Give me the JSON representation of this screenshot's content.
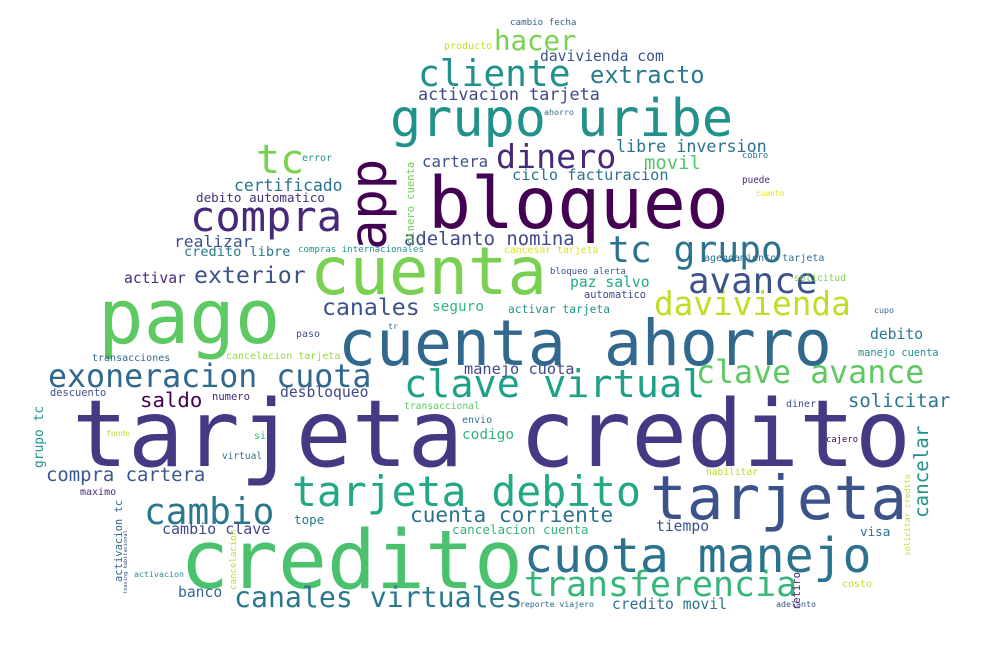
{
  "words": [
    {
      "text": "tarjeta credito",
      "color": "#443983"
    },
    {
      "text": "credito",
      "color": "#4ac16d"
    },
    {
      "text": "pago",
      "color": "#5ec962"
    },
    {
      "text": "bloqueo",
      "color": "#440154"
    },
    {
      "text": "cuenta ahorro",
      "color": "#31688e"
    },
    {
      "text": "cuenta",
      "color": "#7ad151"
    },
    {
      "text": "tarjeta",
      "color": "#3b528b"
    },
    {
      "text": "grupo uribe",
      "color": "#21918c"
    },
    {
      "text": "app",
      "color": "#440154"
    },
    {
      "text": "cuota manejo",
      "color": "#2c728e"
    },
    {
      "text": "tarjeta debito",
      "color": "#22a884"
    },
    {
      "text": "clave virtual",
      "color": "#1fa187"
    },
    {
      "text": "compra",
      "color": "#482878"
    },
    {
      "text": "tc grupo",
      "color": "#2c728e"
    },
    {
      "text": "cliente",
      "color": "#21918c"
    },
    {
      "text": "canales virtuales",
      "color": "#2a788e"
    },
    {
      "text": "transferencia",
      "color": "#35b779"
    },
    {
      "text": "exoneracion cuota",
      "color": "#31688e"
    },
    {
      "text": "davivienda",
      "color": "#bddf26"
    },
    {
      "text": "cambio",
      "color": "#2a788e"
    },
    {
      "text": "clave avance",
      "color": "#5ec962"
    },
    {
      "text": "avance",
      "color": "#3b528b"
    },
    {
      "text": "tc",
      "color": "#7ad151"
    },
    {
      "text": "dinero",
      "color": "#482878"
    },
    {
      "text": "hacer",
      "color": "#7ad151"
    },
    {
      "text": "extracto",
      "color": "#2a788e"
    },
    {
      "text": "exterior",
      "color": "#3b528b"
    },
    {
      "text": "canales",
      "color": "#3b528b"
    },
    {
      "text": "compra cartera",
      "color": "#38598c"
    },
    {
      "text": "cuenta corriente",
      "color": "#2c728e"
    },
    {
      "text": "cancelar",
      "color": "#21918c"
    },
    {
      "text": "solicitar",
      "color": "#2a788e"
    },
    {
      "text": "adelanto nomina",
      "color": "#3e4989"
    },
    {
      "text": "activacion tarjeta",
      "color": "#3e4989"
    },
    {
      "text": "davivienda com",
      "color": "#39568c"
    },
    {
      "text": "manejo cuota",
      "color": "#3e4989"
    },
    {
      "text": "saldo",
      "color": "#440154"
    },
    {
      "text": "cambio clave",
      "color": "#3e4989"
    },
    {
      "text": "movil",
      "color": "#52c569"
    },
    {
      "text": "libre inversion",
      "color": "#2c728e"
    },
    {
      "text": "ciclo facturacion",
      "color": "#2c728e"
    },
    {
      "text": "cartera",
      "color": "#3b528b"
    },
    {
      "text": "certificado",
      "color": "#2c728e"
    },
    {
      "text": "debito automatico",
      "color": "#472d7b"
    },
    {
      "text": "realizar",
      "color": "#3b528b"
    },
    {
      "text": "credito libre",
      "color": "#2a788e"
    },
    {
      "text": "activar",
      "color": "#482878"
    },
    {
      "text": "paz salvo",
      "color": "#22a884"
    },
    {
      "text": "seguro",
      "color": "#2fb47c"
    },
    {
      "text": "activar tarjeta",
      "color": "#21918c"
    },
    {
      "text": "desbloqueo",
      "color": "#3e4989"
    },
    {
      "text": "codigo",
      "color": "#2fb47c"
    },
    {
      "text": "tope",
      "color": "#2a788e"
    },
    {
      "text": "cancelacion cuenta",
      "color": "#35b779"
    },
    {
      "text": "tiempo",
      "color": "#3b528b"
    },
    {
      "text": "visa",
      "color": "#2c728e"
    },
    {
      "text": "banco",
      "color": "#31688e"
    },
    {
      "text": "credito movil",
      "color": "#2c728e"
    },
    {
      "text": "debito",
      "color": "#2a788e"
    },
    {
      "text": "grupo tc",
      "color": "#21918c"
    },
    {
      "text": "transacciones",
      "color": "#31688e"
    },
    {
      "text": "cancelacion tarjeta",
      "color": "#95d840"
    },
    {
      "text": "descuento",
      "color": "#3b528b"
    },
    {
      "text": "numero",
      "color": "#482878"
    },
    {
      "text": "transaccional",
      "color": "#5ec962"
    },
    {
      "text": "envio",
      "color": "#2c728e"
    },
    {
      "text": "si",
      "color": "#35b779"
    },
    {
      "text": "fondo",
      "color": "#bddf26"
    },
    {
      "text": "virtual",
      "color": "#2c728e"
    },
    {
      "text": "maximo",
      "color": "#482878"
    },
    {
      "text": "activacion tc",
      "color": "#31688e"
    },
    {
      "text": "leasing habitacional",
      "color": "#3b528b"
    },
    {
      "text": "activacion",
      "color": "#21918c"
    },
    {
      "text": "cancelacion",
      "color": "#bddf26"
    },
    {
      "text": "dinero cuenta",
      "color": "#6ece58"
    },
    {
      "text": "reporte viajero",
      "color": "#31688e"
    },
    {
      "text": "retiro",
      "color": "#481f70"
    },
    {
      "text": "adelanto",
      "color": "#3b528b"
    },
    {
      "text": "costo",
      "color": "#bddf26"
    },
    {
      "text": "solicitar credito",
      "color": "#bddf26"
    },
    {
      "text": "cajero",
      "color": "#440154"
    },
    {
      "text": "habilitar",
      "color": "#b5de2b"
    },
    {
      "text": "diner",
      "color": "#3e4989"
    },
    {
      "text": "manejo cuenta",
      "color": "#21918c"
    },
    {
      "text": "cupo",
      "color": "#31688e"
    },
    {
      "text": "solicitud",
      "color": "#7ad151"
    },
    {
      "text": "automatico",
      "color": "#3e4989"
    },
    {
      "text": "bloqueo alerta",
      "color": "#3b528b"
    },
    {
      "text": "agendamiento tarjeta",
      "color": "#2c728e"
    },
    {
      "text": "cancesar tarjeta",
      "color": "#dde318"
    },
    {
      "text": "compras internacionales",
      "color": "#21918c"
    },
    {
      "text": "cambio fecha",
      "color": "#31688e"
    },
    {
      "text": "producto",
      "color": "#bddf26"
    },
    {
      "text": "ahorro",
      "color": "#2c728e"
    },
    {
      "text": "error",
      "color": "#21918c"
    },
    {
      "text": "cobro",
      "color": "#2c728e"
    },
    {
      "text": "puede",
      "color": "#482878"
    },
    {
      "text": "cuanto",
      "color": "#dde318"
    },
    {
      "text": "paso",
      "color": "#3b528b"
    },
    {
      "text": "tr",
      "color": "#31688e"
    }
  ]
}
